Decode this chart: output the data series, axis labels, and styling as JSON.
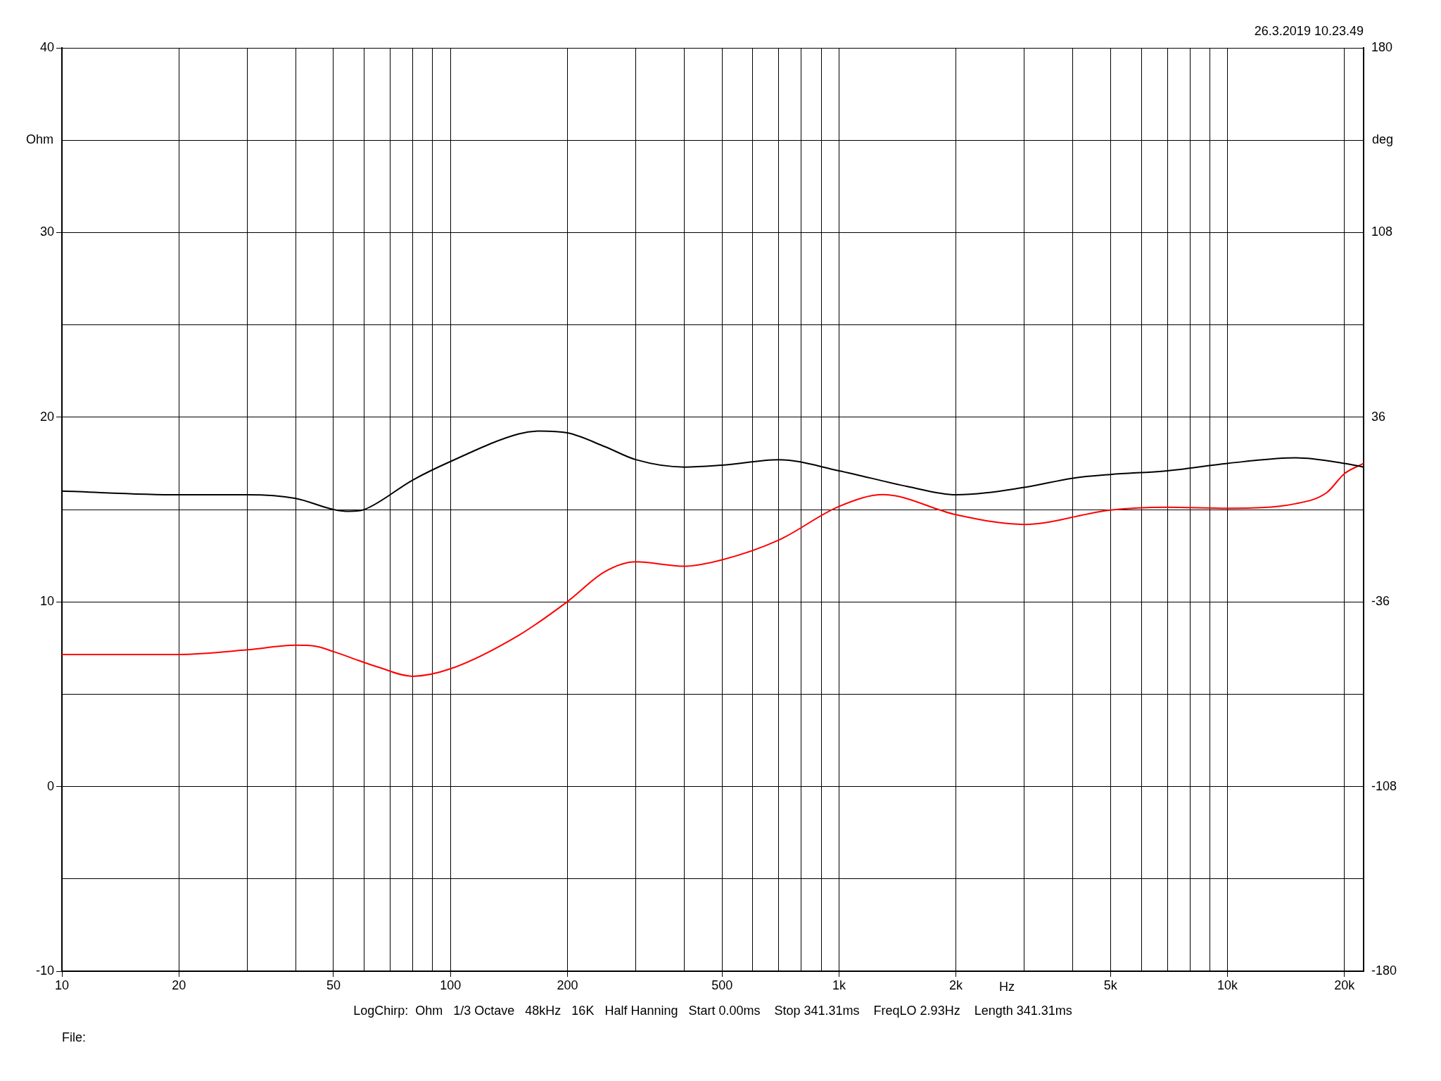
{
  "chart_data": {
    "type": "line",
    "xlabel": "Hz",
    "ylabel": "Ohm",
    "y2label": "deg",
    "annotations": [
      "26.3.2019 10.23.49",
      "LogChirp:  Ohm   1/3 Octave   48kHz   16K   Half Hanning   Start 0.00ms    Stop 341.31ms    FreqLO 2.93Hz    Length 341.31ms",
      "File:"
    ],
    "x": [
      10,
      20,
      30,
      40,
      50,
      55,
      60,
      80,
      100,
      150,
      170,
      200,
      250,
      300,
      400,
      500,
      700,
      1000,
      1500,
      2000,
      3000,
      4000,
      5000,
      7000,
      10000,
      15000,
      20000,
      22400
    ],
    "series": [
      {
        "color": "#000000",
        "values": [
          16.0,
          15.8,
          15.8,
          15.6,
          15.0,
          14.9,
          15.0,
          16.6,
          17.6,
          19.1,
          19.25,
          19.15,
          18.4,
          17.7,
          17.3,
          17.4,
          17.7,
          17.1,
          16.25,
          15.8,
          16.2,
          16.7,
          16.9,
          17.1,
          17.5,
          17.8,
          17.5,
          17.3
        ]
      },
      {
        "color": "#ff0000",
        "axis": "y2",
        "x": [
          10,
          20,
          30,
          40,
          45,
          50,
          65,
          80,
          100,
          150,
          200,
          250,
          300,
          400,
          500,
          700,
          1000,
          1300,
          2000,
          3000,
          5000,
          7000,
          10000,
          15000,
          18000,
          20000,
          22400
        ],
        "values": [
          -56.5,
          -56.5,
          -54.7,
          -52.9,
          -53.3,
          -55.4,
          -61.4,
          -65,
          -62.1,
          -49,
          -35.9,
          -24.2,
          -20.4,
          -22.1,
          -19.6,
          -11.9,
          1.2,
          5.8,
          -2,
          -5.8,
          -0.2,
          0.9,
          0.5,
          2.3,
          6.6,
          14,
          18
        ]
      }
    ],
    "xlim": [
      10,
      22400
    ],
    "xticks": [
      10,
      {
        "value": 20,
        "label": "20"
      },
      {
        "value": 30,
        "label": null
      },
      {
        "value": 40,
        "label": null
      },
      50,
      {
        "value": 60,
        "label": null
      },
      {
        "value": 70,
        "label": null
      },
      {
        "value": 80,
        "label": null
      },
      {
        "value": 90,
        "label": null
      },
      100,
      200,
      {
        "value": 300,
        "label": null
      },
      {
        "value": 400,
        "label": null
      },
      500,
      {
        "value": 600,
        "label": null
      },
      {
        "value": 700,
        "label": null
      },
      {
        "value": 800,
        "label": null
      },
      {
        "value": 900,
        "label": null
      },
      {
        "value": 1000,
        "label": "1k"
      },
      {
        "value": 2000,
        "label": "2k"
      },
      {
        "value": 3000,
        "label": null
      },
      {
        "value": 4000,
        "label": null
      },
      {
        "value": 5000,
        "label": "5k"
      },
      {
        "value": 6000,
        "label": null
      },
      {
        "value": 7000,
        "label": null
      },
      {
        "value": 8000,
        "label": null
      },
      {
        "value": 9000,
        "label": null
      },
      {
        "value": 10000,
        "label": "10k"
      },
      {
        "value": 20000,
        "label": "20k"
      }
    ],
    "ylim": [
      -10,
      40
    ],
    "yticks": [
      -10,
      {
        "value": -5,
        "label": null
      },
      0,
      {
        "value": 5,
        "label": null
      },
      10,
      {
        "value": 15,
        "label": null
      },
      20,
      {
        "value": 25,
        "label": null
      },
      30,
      {
        "value": 35,
        "label": null
      },
      40
    ],
    "y2lim": [
      -180,
      180
    ],
    "y2ticks": [
      -180,
      -108,
      -36,
      36,
      108,
      180
    ],
    "log": "x",
    "grid": true,
    "legend": false,
    "marker": "none",
    "line_style": "solid"
  }
}
